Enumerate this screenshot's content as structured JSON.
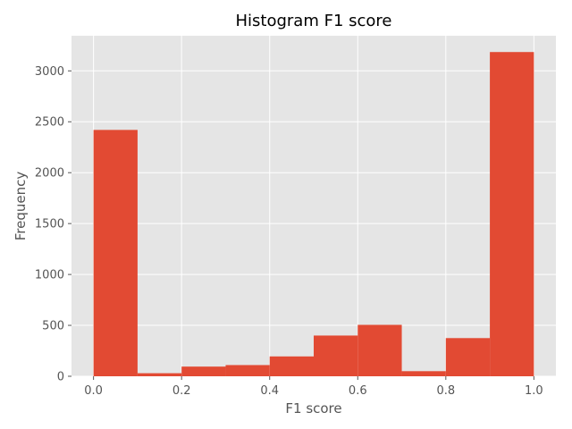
{
  "chart_data": {
    "type": "bar",
    "title": "Histogram F1 score",
    "xlabel": "F1 score",
    "ylabel": "Frequency",
    "bin_edges": [
      0.0,
      0.1,
      0.2,
      0.3,
      0.4,
      0.5,
      0.6,
      0.7,
      0.8,
      0.9,
      1.0
    ],
    "values": [
      2420,
      30,
      95,
      110,
      195,
      400,
      505,
      50,
      375,
      3185
    ],
    "xlim": [
      -0.05,
      1.05
    ],
    "ylim": [
      0,
      3345
    ],
    "xticks": [
      "0.0",
      "0.2",
      "0.4",
      "0.6",
      "0.8",
      "1.0"
    ],
    "xtick_values": [
      0.0,
      0.2,
      0.4,
      0.6,
      0.8,
      1.0
    ],
    "yticks": [
      "0",
      "500",
      "1000",
      "1500",
      "2000",
      "2500",
      "3000"
    ],
    "ytick_values": [
      0,
      500,
      1000,
      1500,
      2000,
      2500,
      3000
    ],
    "grid": true,
    "bar_color": "#e24a33",
    "background_color": "#e5e5e5",
    "grid_color": "#ffffff"
  }
}
